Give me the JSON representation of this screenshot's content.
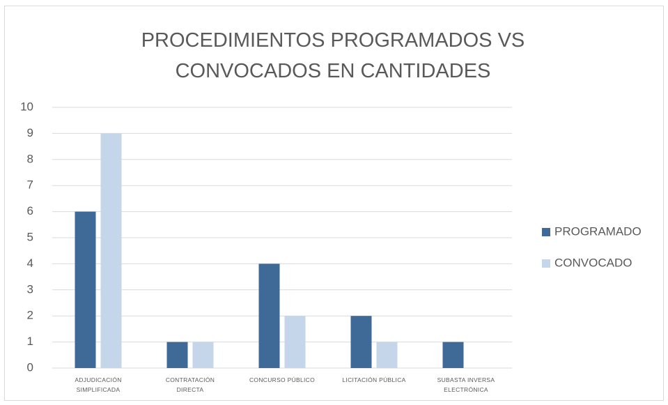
{
  "chart_data": {
    "type": "bar",
    "title": "PROCEDIMIENTOS PROGRAMADOS VS CONVOCADOS EN CANTIDADES",
    "categories": [
      "ADJUDICACIÓN SIMPLIFICADA",
      "CONTRATACIÓN DIRECTA",
      "CONCURSO PÚBLICO",
      "LICITACIÓN PÚBLICA",
      "SUBASTA INVERSA ELECTRÓNICA"
    ],
    "series": [
      {
        "name": "PROGRAMADO",
        "color": "#3f6a98",
        "values": [
          6,
          1,
          4,
          2,
          1
        ]
      },
      {
        "name": "CONVOCADO",
        "color": "#c5d5ea",
        "values": [
          9,
          1,
          2,
          1,
          0
        ]
      }
    ],
    "ylim": [
      0,
      10
    ],
    "yticks": [
      0,
      1,
      2,
      3,
      4,
      5,
      6,
      7,
      8,
      9,
      10
    ],
    "grid": true,
    "legend": "right"
  }
}
